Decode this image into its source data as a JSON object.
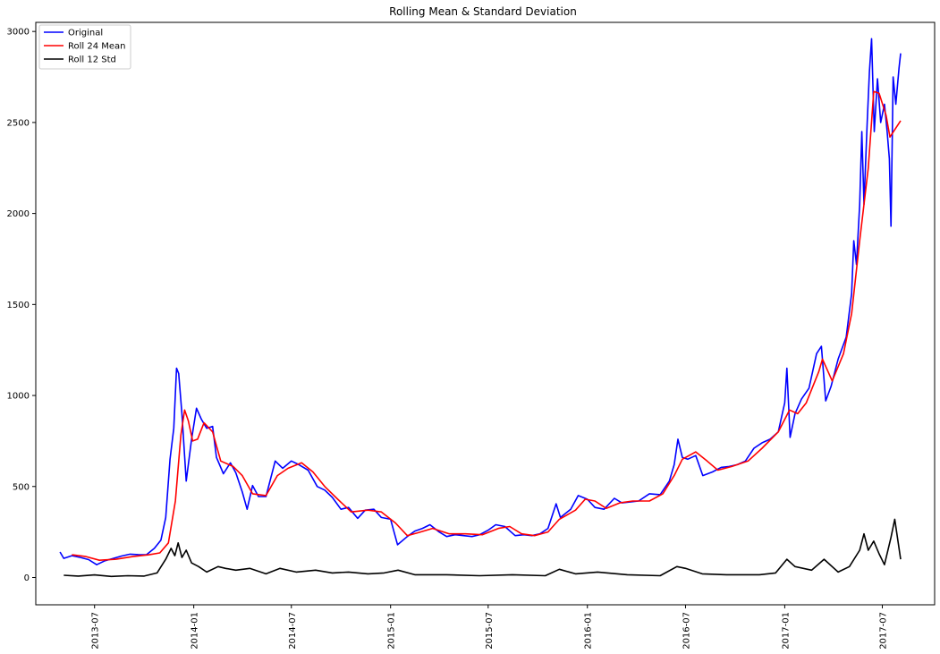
{
  "chart_data": {
    "type": "line",
    "title": "Rolling Mean & Standard Deviation",
    "xlabel": "",
    "ylabel": "",
    "x_range": [
      "2013-03-14",
      "2017-10-06"
    ],
    "ylim": [
      -150,
      3050
    ],
    "x_ticks": [
      "2013-07",
      "2014-01",
      "2014-07",
      "2015-01",
      "2015-07",
      "2016-01",
      "2016-07",
      "2017-01",
      "2017-07"
    ],
    "y_ticks": [
      0,
      500,
      1000,
      1500,
      2000,
      2500,
      3000
    ],
    "grid": false,
    "legend_position": "top-left",
    "series": [
      {
        "name": "Original",
        "color": "#0000ff",
        "points": [
          [
            "2013-04-28",
            140
          ],
          [
            "2013-05-05",
            105
          ],
          [
            "2013-05-20",
            120
          ],
          [
            "2013-06-05",
            110
          ],
          [
            "2013-06-20",
            98
          ],
          [
            "2013-07-05",
            70
          ],
          [
            "2013-07-20",
            92
          ],
          [
            "2013-08-05",
            105
          ],
          [
            "2013-08-20",
            118
          ],
          [
            "2013-09-05",
            128
          ],
          [
            "2013-09-20",
            126
          ],
          [
            "2013-10-05",
            125
          ],
          [
            "2013-10-20",
            160
          ],
          [
            "2013-11-01",
            205
          ],
          [
            "2013-11-10",
            330
          ],
          [
            "2013-11-18",
            650
          ],
          [
            "2013-11-25",
            820
          ],
          [
            "2013-11-30",
            1150
          ],
          [
            "2013-12-04",
            1120
          ],
          [
            "2013-12-10",
            900
          ],
          [
            "2013-12-18",
            530
          ],
          [
            "2013-12-28",
            760
          ],
          [
            "2014-01-06",
            930
          ],
          [
            "2014-01-15",
            870
          ],
          [
            "2014-01-25",
            820
          ],
          [
            "2014-02-05",
            830
          ],
          [
            "2014-02-12",
            660
          ],
          [
            "2014-02-25",
            570
          ],
          [
            "2014-03-10",
            630
          ],
          [
            "2014-03-20",
            575
          ],
          [
            "2014-04-01",
            470
          ],
          [
            "2014-04-10",
            375
          ],
          [
            "2014-04-20",
            505
          ],
          [
            "2014-05-01",
            445
          ],
          [
            "2014-05-15",
            445
          ],
          [
            "2014-06-01",
            640
          ],
          [
            "2014-06-15",
            600
          ],
          [
            "2014-07-01",
            640
          ],
          [
            "2014-07-15",
            620
          ],
          [
            "2014-08-01",
            590
          ],
          [
            "2014-08-18",
            500
          ],
          [
            "2014-09-01",
            480
          ],
          [
            "2014-09-15",
            440
          ],
          [
            "2014-10-01",
            375
          ],
          [
            "2014-10-15",
            385
          ],
          [
            "2014-11-01",
            325
          ],
          [
            "2014-11-15",
            370
          ],
          [
            "2014-12-01",
            375
          ],
          [
            "2014-12-15",
            330
          ],
          [
            "2015-01-01",
            320
          ],
          [
            "2015-01-14",
            180
          ],
          [
            "2015-02-01",
            225
          ],
          [
            "2015-02-15",
            255
          ],
          [
            "2015-03-01",
            270
          ],
          [
            "2015-03-15",
            290
          ],
          [
            "2015-04-01",
            250
          ],
          [
            "2015-04-15",
            225
          ],
          [
            "2015-05-01",
            235
          ],
          [
            "2015-06-01",
            225
          ],
          [
            "2015-06-15",
            235
          ],
          [
            "2015-07-01",
            260
          ],
          [
            "2015-07-15",
            290
          ],
          [
            "2015-08-01",
            280
          ],
          [
            "2015-08-20",
            230
          ],
          [
            "2015-09-05",
            235
          ],
          [
            "2015-09-20",
            230
          ],
          [
            "2015-10-05",
            240
          ],
          [
            "2015-10-20",
            270
          ],
          [
            "2015-11-04",
            405
          ],
          [
            "2015-11-12",
            330
          ],
          [
            "2015-12-01",
            375
          ],
          [
            "2015-12-15",
            450
          ],
          [
            "2016-01-01",
            430
          ],
          [
            "2016-01-15",
            385
          ],
          [
            "2016-02-01",
            375
          ],
          [
            "2016-02-20",
            435
          ],
          [
            "2016-03-05",
            410
          ],
          [
            "2016-03-20",
            415
          ],
          [
            "2016-04-05",
            420
          ],
          [
            "2016-04-25",
            460
          ],
          [
            "2016-05-15",
            455
          ],
          [
            "2016-06-01",
            530
          ],
          [
            "2016-06-10",
            620
          ],
          [
            "2016-06-17",
            760
          ],
          [
            "2016-06-25",
            660
          ],
          [
            "2016-07-05",
            650
          ],
          [
            "2016-07-20",
            670
          ],
          [
            "2016-08-02",
            560
          ],
          [
            "2016-08-20",
            580
          ],
          [
            "2016-09-05",
            605
          ],
          [
            "2016-09-20",
            610
          ],
          [
            "2016-10-05",
            620
          ],
          [
            "2016-10-20",
            640
          ],
          [
            "2016-11-05",
            710
          ],
          [
            "2016-11-20",
            740
          ],
          [
            "2016-12-05",
            760
          ],
          [
            "2016-12-20",
            800
          ],
          [
            "2017-01-01",
            960
          ],
          [
            "2017-01-05",
            1150
          ],
          [
            "2017-01-11",
            770
          ],
          [
            "2017-01-20",
            900
          ],
          [
            "2017-02-01",
            980
          ],
          [
            "2017-02-15",
            1040
          ],
          [
            "2017-03-01",
            1230
          ],
          [
            "2017-03-10",
            1270
          ],
          [
            "2017-03-18",
            970
          ],
          [
            "2017-03-28",
            1050
          ],
          [
            "2017-04-10",
            1200
          ],
          [
            "2017-04-25",
            1320
          ],
          [
            "2017-05-05",
            1560
          ],
          [
            "2017-05-09",
            1850
          ],
          [
            "2017-05-14",
            1720
          ],
          [
            "2017-05-20",
            2050
          ],
          [
            "2017-05-24",
            2450
          ],
          [
            "2017-05-28",
            2050
          ],
          [
            "2017-06-03",
            2500
          ],
          [
            "2017-06-07",
            2780
          ],
          [
            "2017-06-11",
            2960
          ],
          [
            "2017-06-16",
            2450
          ],
          [
            "2017-06-22",
            2740
          ],
          [
            "2017-06-28",
            2500
          ],
          [
            "2017-07-05",
            2600
          ],
          [
            "2017-07-10",
            2450
          ],
          [
            "2017-07-14",
            2300
          ],
          [
            "2017-07-17",
            1930
          ],
          [
            "2017-07-21",
            2750
          ],
          [
            "2017-07-26",
            2600
          ],
          [
            "2017-08-01",
            2800
          ],
          [
            "2017-08-04",
            2880
          ]
        ]
      },
      {
        "name": "Roll 24 Mean",
        "color": "#ff0000",
        "points": [
          [
            "2013-05-20",
            125
          ],
          [
            "2013-06-15",
            115
          ],
          [
            "2013-07-10",
            95
          ],
          [
            "2013-08-10",
            100
          ],
          [
            "2013-09-10",
            115
          ],
          [
            "2013-10-10",
            125
          ],
          [
            "2013-10-30",
            135
          ],
          [
            "2013-11-15",
            190
          ],
          [
            "2013-11-28",
            420
          ],
          [
            "2013-12-08",
            780
          ],
          [
            "2013-12-15",
            920
          ],
          [
            "2013-12-22",
            860
          ],
          [
            "2013-12-30",
            750
          ],
          [
            "2014-01-08",
            760
          ],
          [
            "2014-01-20",
            850
          ],
          [
            "2014-02-05",
            800
          ],
          [
            "2014-02-20",
            640
          ],
          [
            "2014-03-15",
            610
          ],
          [
            "2014-04-01",
            560
          ],
          [
            "2014-04-20",
            460
          ],
          [
            "2014-05-15",
            450
          ],
          [
            "2014-06-05",
            560
          ],
          [
            "2014-06-25",
            600
          ],
          [
            "2014-07-20",
            630
          ],
          [
            "2014-08-10",
            580
          ],
          [
            "2014-09-01",
            500
          ],
          [
            "2014-09-25",
            430
          ],
          [
            "2014-10-20",
            360
          ],
          [
            "2014-11-20",
            370
          ],
          [
            "2014-12-15",
            360
          ],
          [
            "2015-01-10",
            300
          ],
          [
            "2015-02-01",
            230
          ],
          [
            "2015-02-20",
            245
          ],
          [
            "2015-03-20",
            270
          ],
          [
            "2015-04-20",
            240
          ],
          [
            "2015-05-20",
            240
          ],
          [
            "2015-06-20",
            235
          ],
          [
            "2015-07-20",
            270
          ],
          [
            "2015-08-10",
            280
          ],
          [
            "2015-09-01",
            240
          ],
          [
            "2015-09-25",
            230
          ],
          [
            "2015-10-20",
            250
          ],
          [
            "2015-11-10",
            320
          ],
          [
            "2015-12-10",
            370
          ],
          [
            "2015-12-28",
            430
          ],
          [
            "2016-01-15",
            420
          ],
          [
            "2016-02-05",
            380
          ],
          [
            "2016-03-01",
            410
          ],
          [
            "2016-03-25",
            420
          ],
          [
            "2016-04-25",
            420
          ],
          [
            "2016-05-20",
            460
          ],
          [
            "2016-06-10",
            560
          ],
          [
            "2016-06-25",
            650
          ],
          [
            "2016-07-20",
            690
          ],
          [
            "2016-08-10",
            640
          ],
          [
            "2016-08-30",
            590
          ],
          [
            "2016-09-25",
            610
          ],
          [
            "2016-10-25",
            640
          ],
          [
            "2016-11-20",
            710
          ],
          [
            "2016-12-20",
            800
          ],
          [
            "2017-01-10",
            920
          ],
          [
            "2017-01-25",
            900
          ],
          [
            "2017-02-10",
            960
          ],
          [
            "2017-03-05",
            1130
          ],
          [
            "2017-03-12",
            1200
          ],
          [
            "2017-03-30",
            1080
          ],
          [
            "2017-04-20",
            1230
          ],
          [
            "2017-05-05",
            1450
          ],
          [
            "2017-05-20",
            1850
          ],
          [
            "2017-06-05",
            2250
          ],
          [
            "2017-06-15",
            2670
          ],
          [
            "2017-06-25",
            2660
          ],
          [
            "2017-07-08",
            2540
          ],
          [
            "2017-07-15",
            2420
          ],
          [
            "2017-08-04",
            2510
          ]
        ]
      },
      {
        "name": "Roll 12 Std",
        "color": "#000000",
        "points": [
          [
            "2013-05-05",
            12
          ],
          [
            "2013-06-01",
            8
          ],
          [
            "2013-07-01",
            14
          ],
          [
            "2013-08-01",
            6
          ],
          [
            "2013-09-01",
            10
          ],
          [
            "2013-10-01",
            8
          ],
          [
            "2013-10-25",
            25
          ],
          [
            "2013-11-10",
            100
          ],
          [
            "2013-11-20",
            160
          ],
          [
            "2013-11-27",
            120
          ],
          [
            "2013-12-03",
            190
          ],
          [
            "2013-12-10",
            110
          ],
          [
            "2013-12-18",
            150
          ],
          [
            "2013-12-28",
            80
          ],
          [
            "2014-01-10",
            60
          ],
          [
            "2014-01-25",
            30
          ],
          [
            "2014-02-15",
            60
          ],
          [
            "2014-03-01",
            50
          ],
          [
            "2014-03-20",
            40
          ],
          [
            "2014-04-15",
            50
          ],
          [
            "2014-05-15",
            20
          ],
          [
            "2014-06-10",
            50
          ],
          [
            "2014-07-10",
            30
          ],
          [
            "2014-08-15",
            40
          ],
          [
            "2014-09-15",
            25
          ],
          [
            "2014-10-15",
            30
          ],
          [
            "2014-11-20",
            20
          ],
          [
            "2014-12-20",
            25
          ],
          [
            "2015-01-15",
            40
          ],
          [
            "2015-02-15",
            15
          ],
          [
            "2015-04-15",
            15
          ],
          [
            "2015-06-15",
            10
          ],
          [
            "2015-08-15",
            15
          ],
          [
            "2015-10-15",
            10
          ],
          [
            "2015-11-10",
            45
          ],
          [
            "2015-12-10",
            20
          ],
          [
            "2016-01-20",
            30
          ],
          [
            "2016-03-15",
            15
          ],
          [
            "2016-05-15",
            10
          ],
          [
            "2016-06-15",
            60
          ],
          [
            "2016-07-01",
            50
          ],
          [
            "2016-08-01",
            20
          ],
          [
            "2016-09-15",
            15
          ],
          [
            "2016-11-15",
            15
          ],
          [
            "2016-12-15",
            25
          ],
          [
            "2017-01-05",
            100
          ],
          [
            "2017-01-20",
            60
          ],
          [
            "2017-02-20",
            40
          ],
          [
            "2017-03-15",
            100
          ],
          [
            "2017-04-10",
            30
          ],
          [
            "2017-05-01",
            60
          ],
          [
            "2017-05-20",
            150
          ],
          [
            "2017-05-28",
            240
          ],
          [
            "2017-06-05",
            150
          ],
          [
            "2017-06-15",
            200
          ],
          [
            "2017-06-25",
            130
          ],
          [
            "2017-07-05",
            70
          ],
          [
            "2017-07-17",
            220
          ],
          [
            "2017-07-24",
            320
          ],
          [
            "2017-08-04",
            100
          ]
        ]
      }
    ]
  }
}
